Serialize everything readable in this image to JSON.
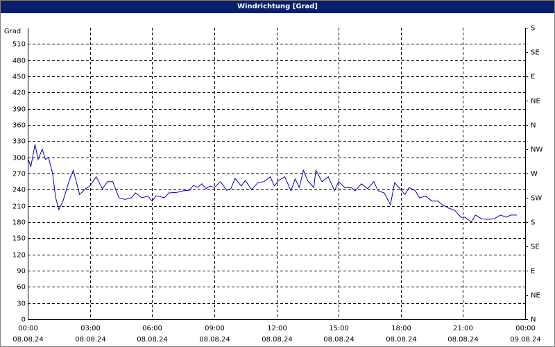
{
  "window_title": "Windrichtung [Grad]",
  "chart_data": {
    "type": "line",
    "y_label": "Grad",
    "x": [
      0,
      0.15,
      0.35,
      0.5,
      0.7,
      0.85,
      1.0,
      1.2,
      1.35,
      1.5,
      1.7,
      2.0,
      2.2,
      2.5,
      2.8,
      3.0,
      3.3,
      3.6,
      3.85,
      4.1,
      4.4,
      4.7,
      5.0,
      5.2,
      5.5,
      5.8,
      6.0,
      6.2,
      6.6,
      6.8,
      7.2,
      7.5,
      7.8,
      8.0,
      8.2,
      8.4,
      8.6,
      8.8,
      9.0,
      9.3,
      9.6,
      9.8,
      10.0,
      10.3,
      10.5,
      10.8,
      11.1,
      11.4,
      11.7,
      11.9,
      12.1,
      12.4,
      12.7,
      12.9,
      13.1,
      13.3,
      13.5,
      13.8,
      13.9,
      14.2,
      14.5,
      14.8,
      15.0,
      15.3,
      15.6,
      15.8,
      16.1,
      16.4,
      16.7,
      16.9,
      17.2,
      17.5,
      17.7,
      18.0,
      18.2,
      18.4,
      18.7,
      18.9,
      19.2,
      19.5,
      19.8,
      20.0,
      20.3,
      20.6,
      20.9,
      21.1,
      21.4,
      21.6,
      21.9,
      22.2,
      22.5,
      22.8,
      23.1,
      23.3,
      23.6
    ],
    "series": [
      {
        "color": "#0000b4",
        "values": [
          298,
          283,
          324,
          296,
          315,
          296,
          300,
          270,
          225,
          203,
          219,
          257,
          276,
          231,
          242,
          247,
          264,
          242,
          255,
          255,
          225,
          222,
          225,
          234,
          225,
          228,
          219,
          229,
          225,
          234,
          235,
          238,
          239,
          248,
          244,
          251,
          242,
          247,
          244,
          255,
          239,
          242,
          261,
          247,
          257,
          240,
          253,
          255,
          264,
          247,
          257,
          264,
          238,
          260,
          244,
          276,
          257,
          244,
          276,
          255,
          264,
          238,
          255,
          244,
          244,
          238,
          251,
          242,
          255,
          238,
          234,
          212,
          253,
          240,
          231,
          244,
          238,
          225,
          228,
          219,
          219,
          212,
          206,
          202,
          189,
          189,
          180,
          193,
          186,
          185,
          186,
          193,
          189,
          193,
          193
        ]
      }
    ],
    "xlim": [
      0,
      24
    ],
    "xticks": [
      {
        "value": 0,
        "label": [
          "00:00",
          "08.08.24"
        ]
      },
      {
        "value": 3,
        "label": [
          "03:00",
          "08.08.24"
        ]
      },
      {
        "value": 6,
        "label": [
          "06:00",
          "08.08.24"
        ]
      },
      {
        "value": 9,
        "label": [
          "09:00",
          "08.08.24"
        ]
      },
      {
        "value": 12,
        "label": [
          "12:00",
          "08.08.24"
        ]
      },
      {
        "value": 15,
        "label": [
          "15:00",
          "08.08.24"
        ]
      },
      {
        "value": 18,
        "label": [
          "18:00",
          "08.08.24"
        ]
      },
      {
        "value": 21,
        "label": [
          "21:00",
          "08.08.24"
        ]
      },
      {
        "value": 24,
        "label": [
          "00:00",
          "09.08.24"
        ]
      }
    ],
    "ylim": [
      0,
      540
    ],
    "yticks": [
      0,
      30,
      60,
      90,
      120,
      150,
      180,
      210,
      240,
      270,
      300,
      330,
      360,
      390,
      420,
      450,
      480,
      510
    ],
    "y2lim": [
      0,
      540
    ],
    "y2ticks": [
      {
        "value": 0,
        "label": "N"
      },
      {
        "value": 45,
        "label": "NE"
      },
      {
        "value": 90,
        "label": "E"
      },
      {
        "value": 135,
        "label": "SE"
      },
      {
        "value": 180,
        "label": "S"
      },
      {
        "value": 225,
        "label": "SW"
      },
      {
        "value": 270,
        "label": "W"
      },
      {
        "value": 315,
        "label": "NW"
      },
      {
        "value": 360,
        "label": "N"
      },
      {
        "value": 405,
        "label": "NE"
      },
      {
        "value": 450,
        "label": "E"
      },
      {
        "value": 495,
        "label": "SE"
      },
      {
        "value": 540,
        "label": "S"
      }
    ],
    "grid": true
  }
}
